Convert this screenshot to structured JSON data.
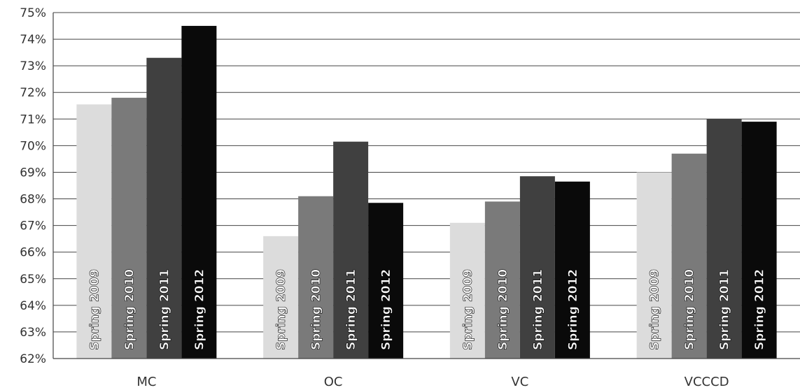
{
  "chart_data": {
    "type": "bar",
    "title": "",
    "xlabel": "",
    "ylabel": "",
    "categories": [
      "MC",
      "OC",
      "VC",
      "VCCCD"
    ],
    "series": [
      {
        "name": "Spring 2009",
        "color": "#dcdcdc",
        "values": [
          71.55,
          66.6,
          67.1,
          69.0
        ]
      },
      {
        "name": "Spring 2010",
        "color": "#7a7a7a",
        "values": [
          71.8,
          68.1,
          67.9,
          69.7
        ]
      },
      {
        "name": "Spring 2011",
        "color": "#404040",
        "values": [
          73.3,
          70.15,
          68.85,
          71.0
        ]
      },
      {
        "name": "Spring 2012",
        "color": "#0a0a0a",
        "values": [
          74.5,
          67.85,
          68.65,
          70.9
        ]
      }
    ],
    "ylim": [
      62,
      75
    ],
    "yticks": [
      "62%",
      "63%",
      "64%",
      "65%",
      "66%",
      "67%",
      "68%",
      "69%",
      "70%",
      "71%",
      "72%",
      "73%",
      "74%",
      "75%"
    ],
    "grid": true,
    "legend": "none; series names printed vertically inside bars"
  }
}
